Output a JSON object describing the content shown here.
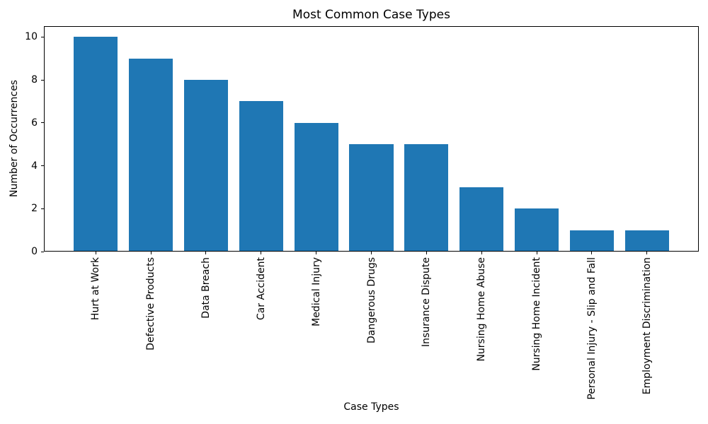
{
  "chart_data": {
    "type": "bar",
    "title": "Most Common Case Types",
    "xlabel": "Case Types",
    "ylabel": "Number of Occurrences",
    "categories": [
      "Hurt at Work",
      "Defective Products",
      "Data Breach",
      "Car Accident",
      "Medical Injury",
      "Dangerous Drugs",
      "Insurance Dispute",
      "Nursing Home Abuse",
      "Nursing Home Incident",
      "Personal Injury - Slip and Fall",
      "Employment Discrimination"
    ],
    "values": [
      10,
      9,
      8,
      7,
      6,
      5,
      5,
      3,
      2,
      1,
      1
    ],
    "ylim": [
      0,
      10.5
    ],
    "yticks": [
      0,
      2,
      4,
      6,
      8,
      10
    ],
    "bar_color": "#1f77b4",
    "grid": false,
    "legend": null
  }
}
